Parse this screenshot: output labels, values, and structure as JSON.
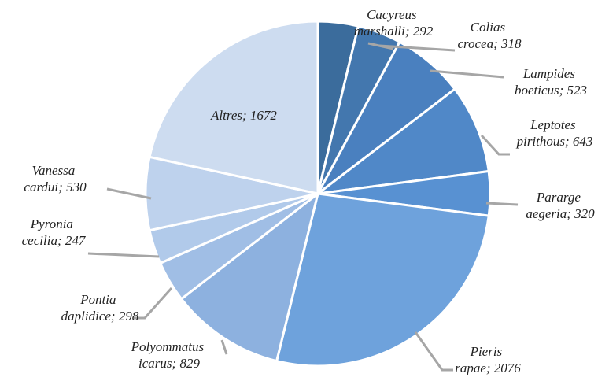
{
  "chart_data": {
    "type": "pie",
    "categories": [
      "Cacyreus marshalli; 292",
      "Colias crocea; 318",
      "Lampides boeticus; 523",
      "Leptotes pirithous; 643",
      "Pararge aegeria; 320",
      "Pieris rapae; 2076",
      "Polyommatus icarus; 829",
      "Pontia daplidice; 298",
      "Pyronia cecilia; 247",
      "Vanessa cardui; 530",
      "Altres; 1672"
    ],
    "values": [
      292,
      318,
      523,
      643,
      320,
      2076,
      829,
      298,
      247,
      530,
      1672
    ],
    "colors": [
      "#3b6c9c",
      "#4377ae",
      "#4a80bf",
      "#5088c8",
      "#5891d2",
      "#6ea2dc",
      "#8db1df",
      "#a0bee5",
      "#b1caea",
      "#bed2ed",
      "#cddcf0"
    ]
  }
}
